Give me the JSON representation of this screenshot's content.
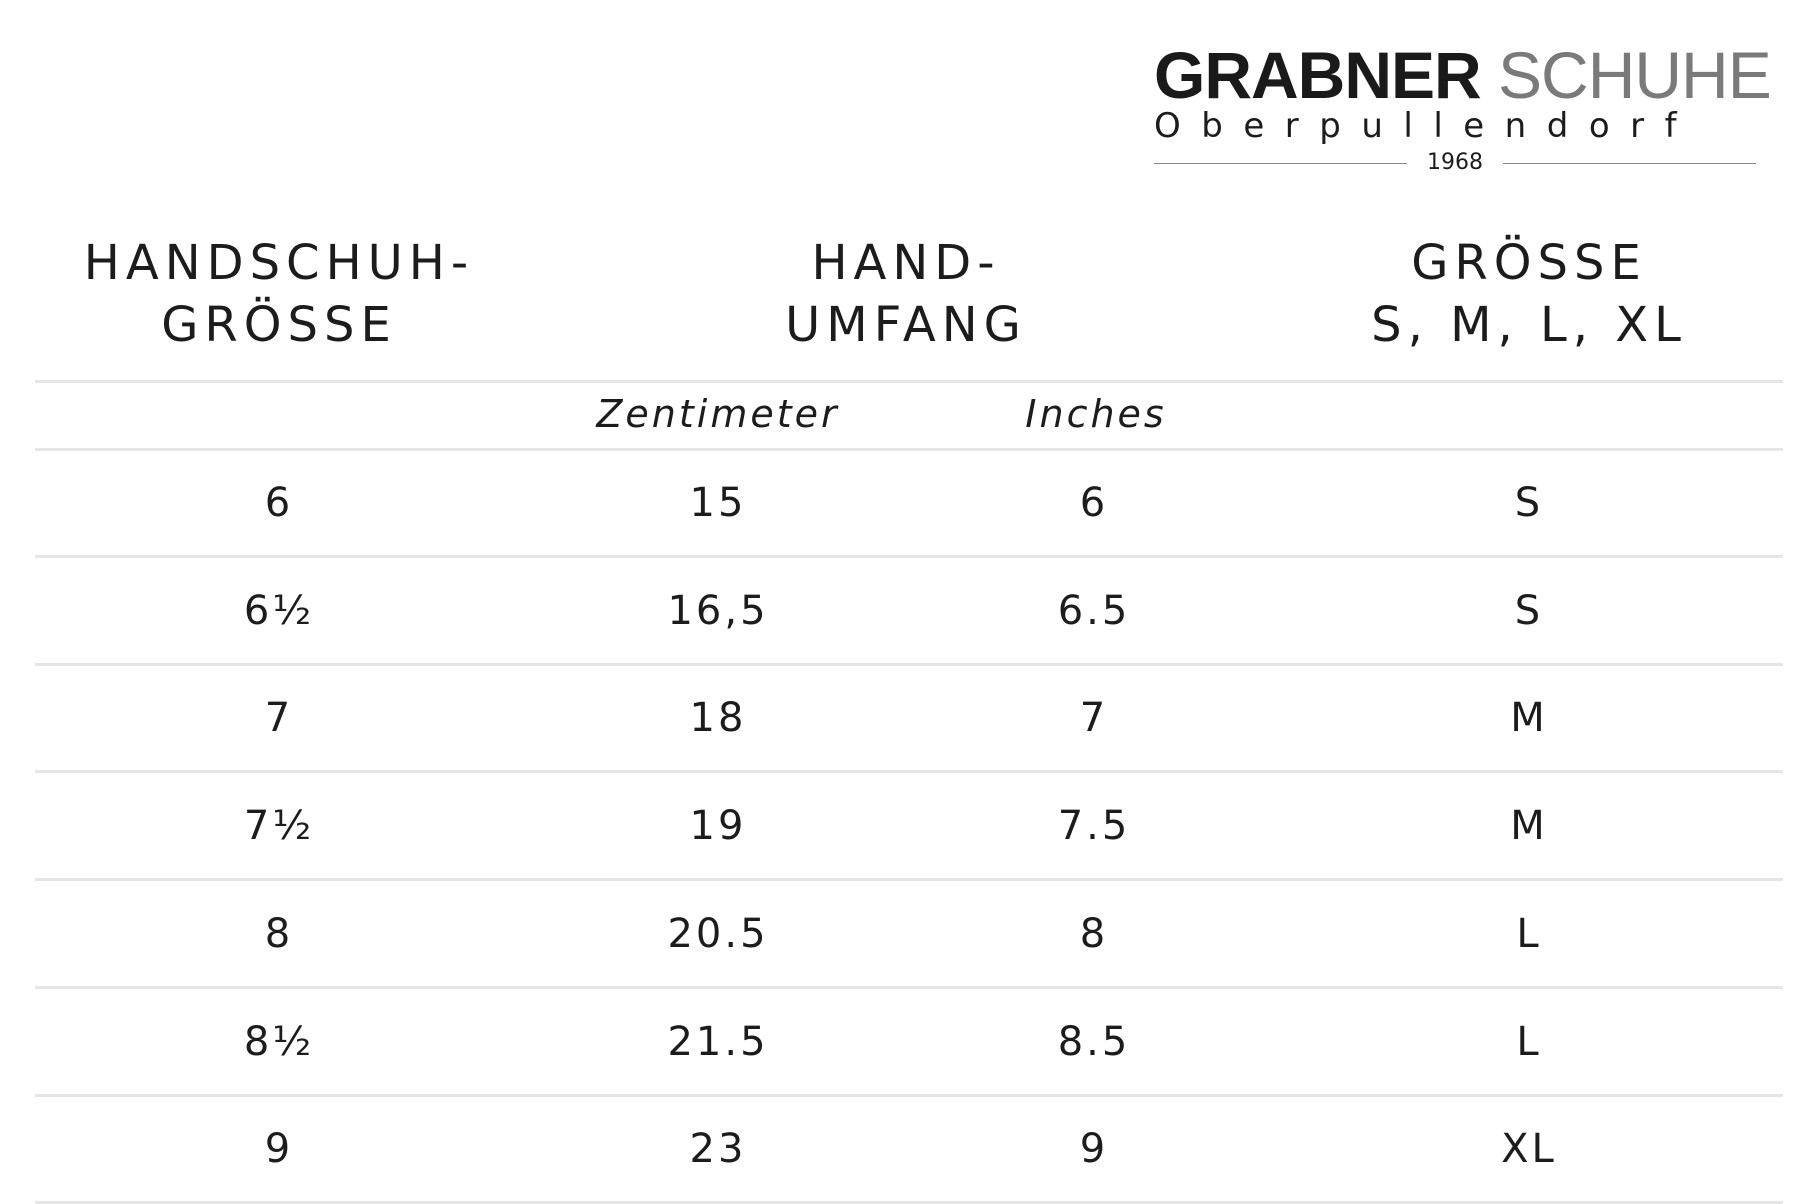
{
  "logo": {
    "brand_bold": "GRABNER",
    "brand_light": "SCHUHE",
    "city": "Oberpullendorf",
    "year": "1968"
  },
  "headers": {
    "glove_size": [
      "HANDSCHUH-",
      "GRÖSSE"
    ],
    "hand_circumference": [
      "HAND-",
      "UMFANG"
    ],
    "size": [
      "GRÖSSE",
      "S, M, L, XL"
    ]
  },
  "subheaders": {
    "cm": "Zentimeter",
    "inches": "Inches"
  },
  "rows": [
    [
      "6",
      "15",
      "6",
      "S"
    ],
    [
      "6½",
      "16,5",
      "6.5",
      "S"
    ],
    [
      "7",
      "18",
      "7",
      "M"
    ],
    [
      "7½",
      "19",
      "7.5",
      "M"
    ],
    [
      "8",
      "20.5",
      "8",
      "L"
    ],
    [
      "8½",
      "21.5",
      "8.5",
      "L"
    ],
    [
      "9",
      "23",
      "9",
      "XL"
    ]
  ]
}
